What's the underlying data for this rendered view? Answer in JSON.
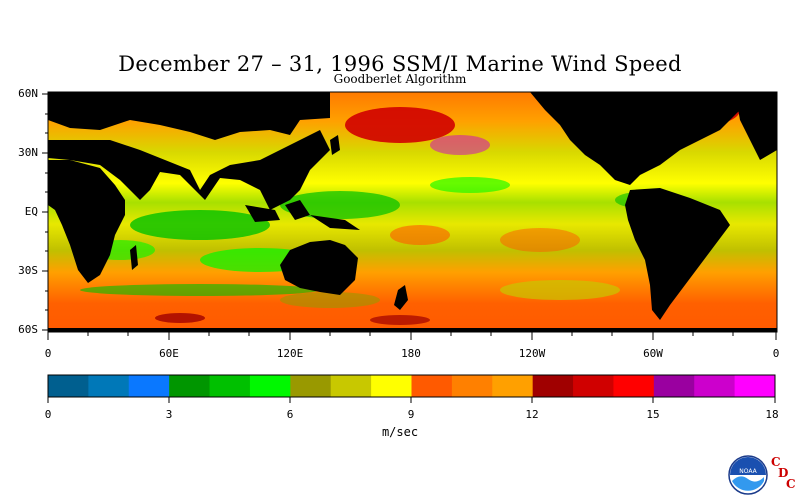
{
  "title": "December 27 – 31, 1996 SSM/I Marine Wind Speed",
  "subtitle": "Goodberlet Algorithm",
  "lat_labels": [
    "60N",
    "30N",
    "EQ",
    "30S",
    "60S"
  ],
  "lon_labels": [
    "0",
    "60E",
    "120E",
    "180",
    "120W",
    "60W",
    "0"
  ],
  "colorbar": {
    "tick_labels": [
      "0",
      "3",
      "6",
      "9",
      "12",
      "15",
      "18"
    ],
    "units": "m/sec",
    "colors": [
      "#005f8f",
      "#0078b8",
      "#0a78ff",
      "#009600",
      "#00c000",
      "#00f800",
      "#999900",
      "#c8c800",
      "#ffff00",
      "#ff5a00",
      "#ff8000",
      "#ffa000",
      "#a00000",
      "#d00000",
      "#ff0000",
      "#9a00a0",
      "#cc00cc",
      "#ff00ff"
    ]
  },
  "logo": {
    "name": "noaa-logo",
    "text": "NOAA",
    "letters": [
      "C",
      "D",
      "C"
    ]
  },
  "land_color": "#000000"
}
